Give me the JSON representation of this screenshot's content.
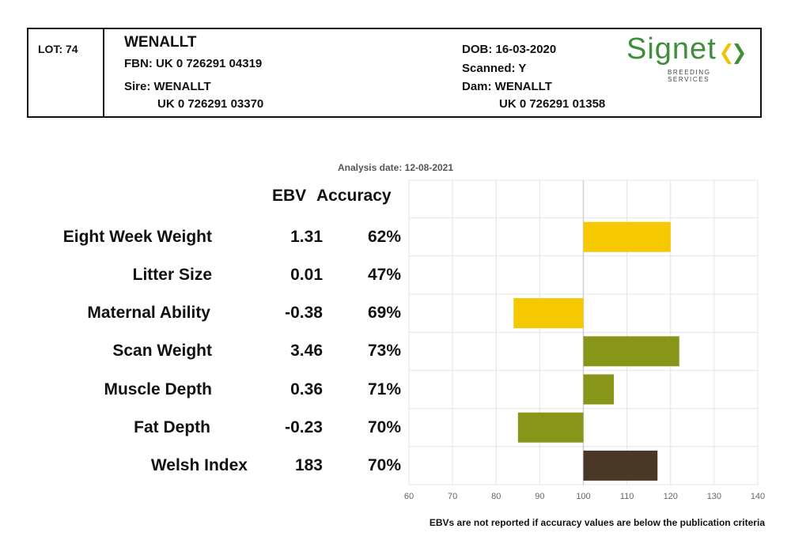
{
  "header": {
    "lot": "LOT: 74",
    "name": "WENALLT",
    "fbn": "FBN: UK 0 726291 04319",
    "sire_label": "Sire: WENALLT",
    "sire_id": "UK 0 726291 03370",
    "dob": "DOB: 16-03-2020",
    "scanned": "Scanned: Y",
    "dam_label": "Dam: WENALLT",
    "dam_id": "UK 0 726291 01358",
    "logo_word": "Signet",
    "logo_sub": "BREEDING SERVICES",
    "logo_colors": [
      "#3f8f3a",
      "#f2c200"
    ]
  },
  "analysis_date": "Analysis date: 12-08-2021",
  "columns": {
    "ebv": "EBV",
    "accuracy": "Accuracy"
  },
  "footnote": "EBVs are not reported if accuracy values are below the publication criteria",
  "colors": {
    "gold": "#f5c800",
    "olive": "#879618",
    "brown": "#4a3826",
    "grid": "#e4e4e4"
  },
  "chart_data": {
    "type": "bar",
    "orientation": "horizontal",
    "baseline": 100,
    "xlim": [
      60,
      140
    ],
    "x_ticks": [
      "60",
      "70",
      "80",
      "90",
      "100",
      "110",
      "120",
      "130",
      "140"
    ],
    "grid": true,
    "categories": [
      "Eight Week Weight",
      "Litter Size",
      "Maternal Ability",
      "Scan Weight",
      "Muscle Depth",
      "Fat Depth",
      "Welsh Index"
    ],
    "ebv_labels": [
      "1.31",
      "0.01",
      "-0.38",
      "3.46",
      "0.36",
      "-0.23",
      "183"
    ],
    "accuracy_labels": [
      "62%",
      "47%",
      "69%",
      "73%",
      "71%",
      "70%",
      "70%"
    ],
    "values": [
      120,
      100,
      84,
      122,
      107,
      85,
      117
    ],
    "bar_colors": [
      "gold",
      "gold",
      "gold",
      "olive",
      "olive",
      "olive",
      "brown"
    ]
  }
}
